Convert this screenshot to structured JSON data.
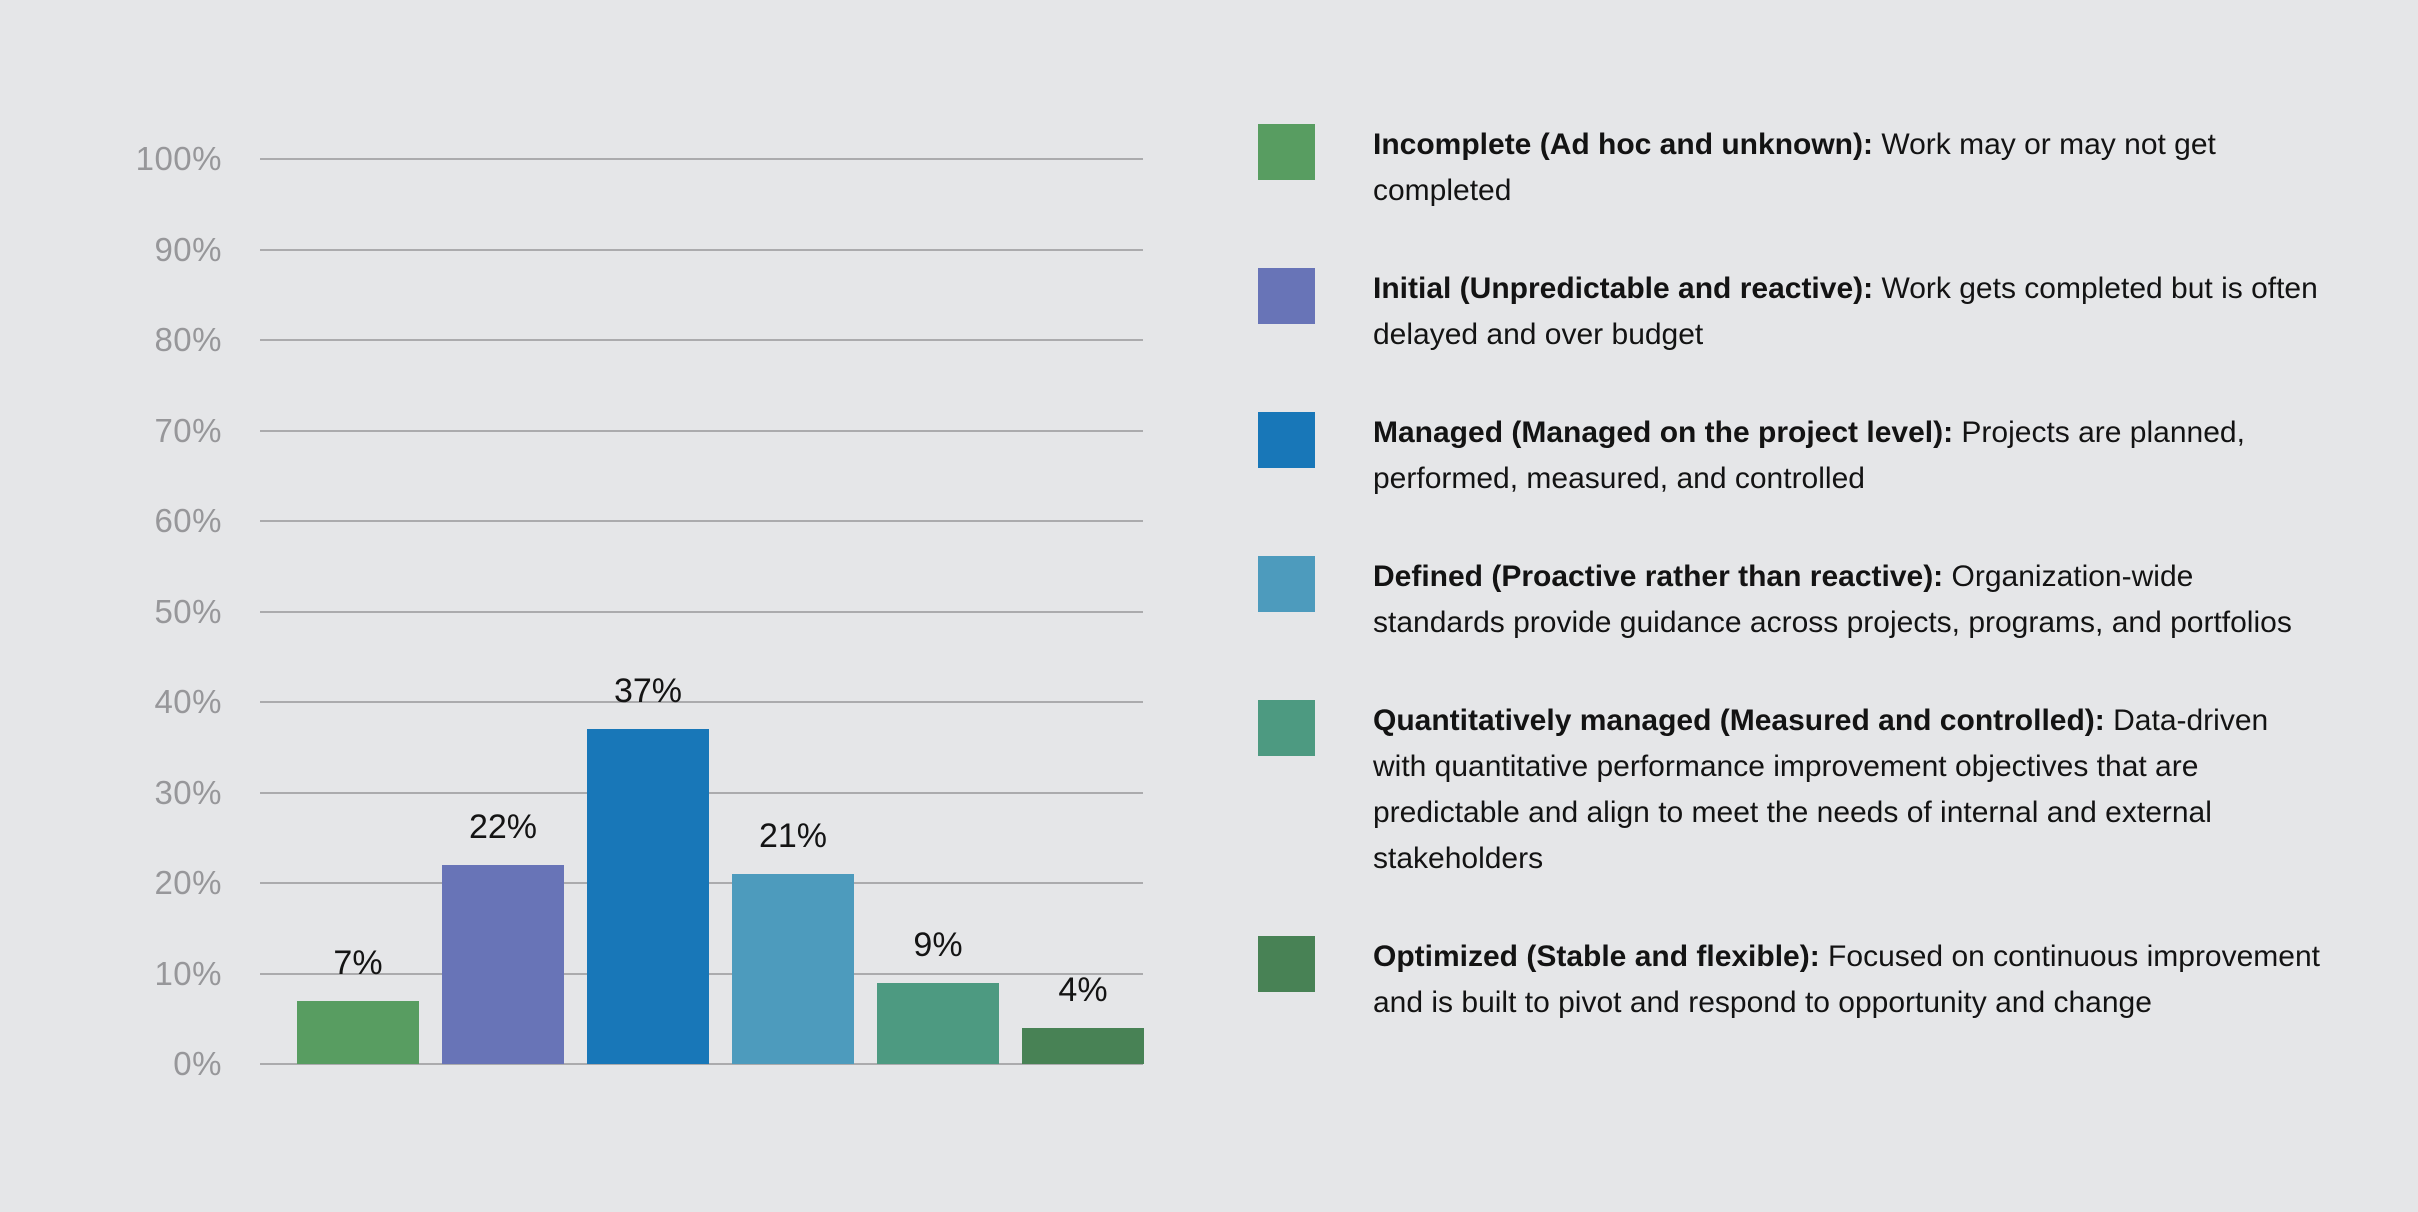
{
  "colors": {
    "background": "#e5e6e8",
    "gridline": "#ababad",
    "tick_text": "#97979a",
    "value_text": "#141414",
    "legend_text": "#131313"
  },
  "chart_data": {
    "type": "bar",
    "title": "",
    "xlabel": "",
    "ylabel": "",
    "ylim": [
      0,
      100
    ],
    "grid": true,
    "legend_position": "right",
    "categories": [
      "Incomplete",
      "Initial",
      "Managed",
      "Defined",
      "Quantitatively managed",
      "Optimized"
    ],
    "values": [
      7,
      22,
      37,
      21,
      9,
      4
    ],
    "bar_value_labels": [
      "7%",
      "22%",
      "37%",
      "21%",
      "9%",
      "4%"
    ],
    "bar_colors": [
      "#589d61",
      "#6874b7",
      "#1877b8",
      "#4d9bbd",
      "#4d9a81",
      "#488255"
    ],
    "y_ticks": [
      {
        "value": 100,
        "label": "100%"
      },
      {
        "value": 90,
        "label": "90%"
      },
      {
        "value": 80,
        "label": "80%"
      },
      {
        "value": 70,
        "label": "70%"
      },
      {
        "value": 60,
        "label": "60%"
      },
      {
        "value": 50,
        "label": "50%"
      },
      {
        "value": 40,
        "label": "40%"
      },
      {
        "value": 30,
        "label": "30%"
      },
      {
        "value": 20,
        "label": "20%"
      },
      {
        "value": 10,
        "label": "10%"
      },
      {
        "value": 0,
        "label": "0%"
      }
    ]
  },
  "legend": {
    "items": [
      {
        "color": "#589d61",
        "label": "Incomplete (Ad hoc and unknown):",
        "description": "Work may or may not get completed"
      },
      {
        "color": "#6874b7",
        "label": "Initial (Unpredictable and reactive):",
        "description": "Work gets completed but is often delayed and over budget"
      },
      {
        "color": "#1877b8",
        "label": "Managed (Managed on the project level):",
        "description": "Projects are planned, performed, measured, and controlled"
      },
      {
        "color": "#4d9bbd",
        "label": "Defined (Proactive rather than reactive):",
        "description": "Organization-wide standards provide guidance across projects, programs, and portfolios"
      },
      {
        "color": "#4d9a81",
        "label": "Quantitatively managed (Measured and controlled):",
        "description": "Data-driven with quantitative performance improvement objectives that are predictable and align to meet the needs of internal and external stakeholders"
      },
      {
        "color": "#488255",
        "label": "Optimized (Stable and flexible):",
        "description": "Focused on continuous improvement and is built to pivot and respond to opportunity and change"
      }
    ]
  }
}
